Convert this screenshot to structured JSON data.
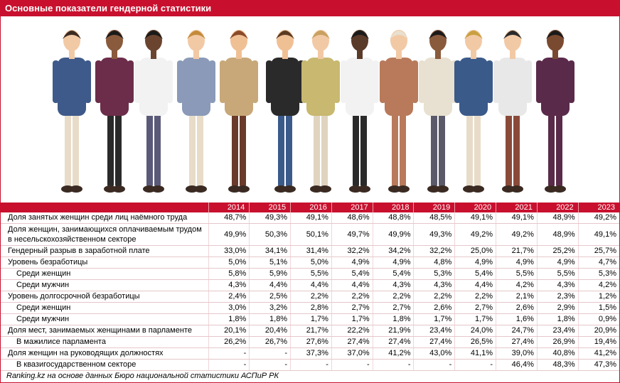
{
  "title": "Основные показатели гендерной статистики",
  "chart_data": {
    "type": "table",
    "columns": [
      "2014",
      "2015",
      "2016",
      "2017",
      "2018",
      "2019",
      "2020",
      "2021",
      "2022",
      "2023"
    ],
    "rows": [
      {
        "label": "Доля занятых женщин среди лиц наёмного труда",
        "indent": 0,
        "values": [
          "48,7%",
          "49,3%",
          "49,1%",
          "48,6%",
          "48,8%",
          "48,5%",
          "49,1%",
          "49,1%",
          "48,9%",
          "49,2%"
        ]
      },
      {
        "label": "Доля женщин, занимающихся оплачиваемым трудом в несельскохозяйственном секторе",
        "indent": 0,
        "values": [
          "49,9%",
          "50,3%",
          "50,1%",
          "49,7%",
          "49,9%",
          "49,3%",
          "49,2%",
          "49,2%",
          "48,9%",
          "49,1%"
        ]
      },
      {
        "label": "Гендерный разрыв в заработной плате",
        "indent": 0,
        "values": [
          "33,0%",
          "34,1%",
          "31,4%",
          "32,2%",
          "34,2%",
          "32,2%",
          "25,0%",
          "21,7%",
          "25,2%",
          "25,7%"
        ]
      },
      {
        "label": "Уровень безработицы",
        "indent": 0,
        "values": [
          "5,0%",
          "5,1%",
          "5,0%",
          "4,9%",
          "4,9%",
          "4,8%",
          "4,9%",
          "4,9%",
          "4,9%",
          "4,7%"
        ]
      },
      {
        "label": "Среди женщин",
        "indent": 1,
        "values": [
          "5,8%",
          "5,9%",
          "5,5%",
          "5,4%",
          "5,4%",
          "5,3%",
          "5,4%",
          "5,5%",
          "5,5%",
          "5,3%"
        ]
      },
      {
        "label": "Среди мужчин",
        "indent": 1,
        "values": [
          "4,3%",
          "4,4%",
          "4,4%",
          "4,4%",
          "4,3%",
          "4,3%",
          "4,4%",
          "4,2%",
          "4,3%",
          "4,2%"
        ]
      },
      {
        "label": "Уровень долгосрочной безработицы",
        "indent": 0,
        "values": [
          "2,4%",
          "2,5%",
          "2,2%",
          "2,2%",
          "2,2%",
          "2,2%",
          "2,2%",
          "2,1%",
          "2,3%",
          "1,2%"
        ]
      },
      {
        "label": "Среди женщин",
        "indent": 1,
        "values": [
          "3,0%",
          "3,2%",
          "2,8%",
          "2,7%",
          "2,7%",
          "2,6%",
          "2,7%",
          "2,6%",
          "2,9%",
          "1,5%"
        ]
      },
      {
        "label": "Среди мужчин",
        "indent": 1,
        "values": [
          "1,8%",
          "1,8%",
          "1,7%",
          "1,7%",
          "1,8%",
          "1,7%",
          "1,7%",
          "1,6%",
          "1,8%",
          "0,9%"
        ]
      },
      {
        "label": "Доля мест, занимаемых женщинами в парламенте",
        "indent": 0,
        "values": [
          "20,1%",
          "20,4%",
          "21,7%",
          "22,2%",
          "21,9%",
          "23,4%",
          "24,0%",
          "24,7%",
          "23,4%",
          "20,9%"
        ]
      },
      {
        "label": "В мажилисе парламента",
        "indent": 1,
        "values": [
          "26,2%",
          "26,7%",
          "27,6%",
          "27,4%",
          "27,4%",
          "27,4%",
          "26,5%",
          "27,4%",
          "26,9%",
          "19,4%"
        ]
      },
      {
        "label": "Доля женщин на руководящих должностях",
        "indent": 0,
        "values": [
          "-",
          "-",
          "37,3%",
          "37,0%",
          "41,2%",
          "43,0%",
          "41,1%",
          "39,0%",
          "40,8%",
          "41,2%"
        ]
      },
      {
        "label": "В квазигосударственном секторе",
        "indent": 1,
        "values": [
          "-",
          "-",
          "-",
          "-",
          "-",
          "-",
          "-",
          "46,4%",
          "48,3%",
          "47,3%"
        ]
      }
    ]
  },
  "footer": "Ranking.kz на основе данных Бюро национальной статистики АСПиР РК",
  "colors": {
    "accent": "#c8102e",
    "header_text": "#ffffff"
  }
}
